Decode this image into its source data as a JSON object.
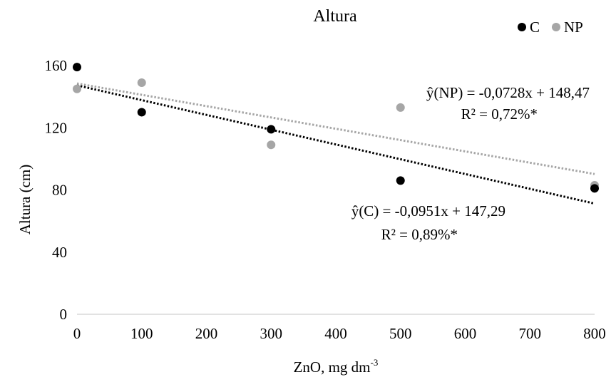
{
  "chart_data": {
    "type": "scatter",
    "title": "Altura",
    "xlabel": "ZnO, mg dm",
    "xlabel_superscript": "-3",
    "ylabel": "Altura (cm)",
    "xlim": [
      0,
      800
    ],
    "ylim": [
      0,
      160
    ],
    "xticks": [
      0,
      100,
      200,
      300,
      400,
      500,
      600,
      700,
      800
    ],
    "yticks": [
      0,
      40,
      80,
      120,
      160
    ],
    "grid": false,
    "legend_position": "top-right",
    "series": [
      {
        "name": "C",
        "color": "#000000",
        "x": [
          0,
          100,
          300,
          500,
          800
        ],
        "y": [
          159,
          130,
          119,
          86,
          81
        ],
        "trend": {
          "slope": -0.0951,
          "intercept": 147.29,
          "color": "#000000",
          "equation": "ŷ(C) = -0,0951x + 147,29",
          "r2": "R² = 0,89%*"
        }
      },
      {
        "name": "NP",
        "color": "#a6a6a6",
        "x": [
          0,
          100,
          300,
          500,
          800
        ],
        "y": [
          145,
          149,
          109,
          133,
          83
        ],
        "trend": {
          "slope": -0.0728,
          "intercept": 148.47,
          "color": "#a6a6a6",
          "equation": "ŷ(NP) = -0,0728x + 148,47",
          "r2": "R² = 0,72%*"
        }
      }
    ]
  }
}
